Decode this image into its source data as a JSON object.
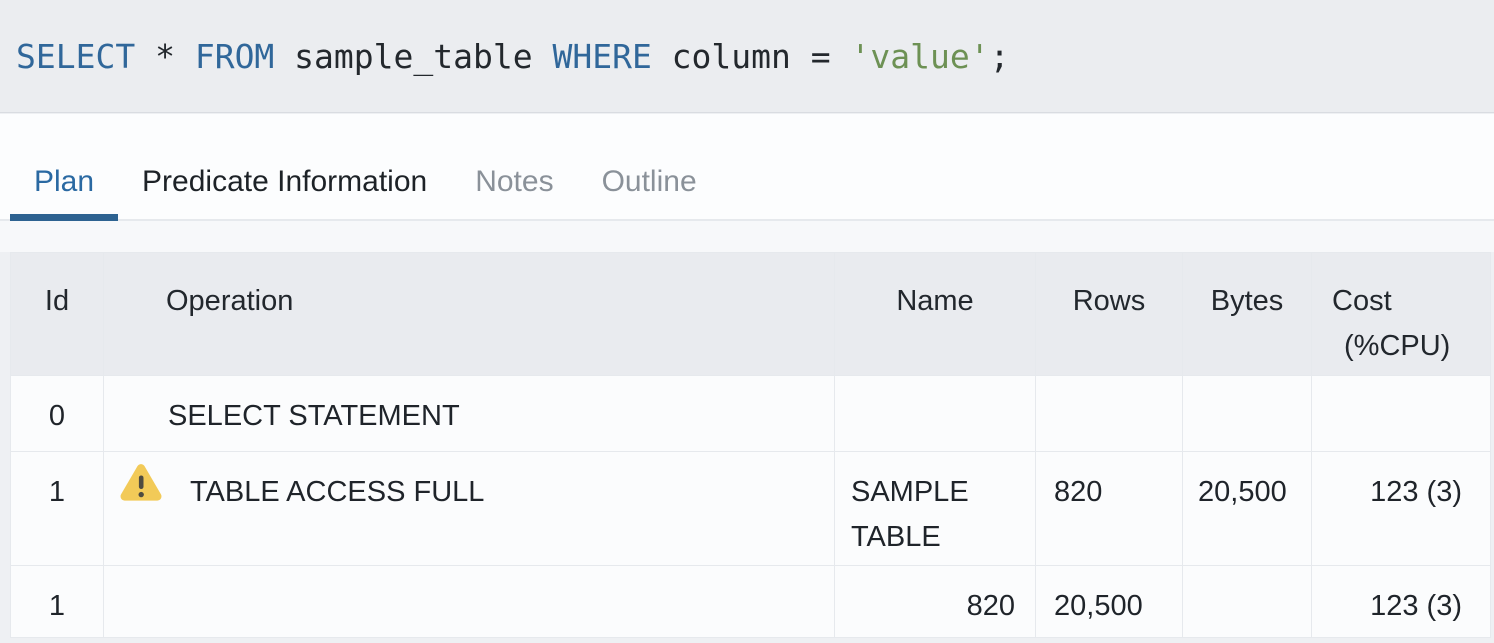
{
  "sql_query": {
    "full_text": "SELECT * FROM sample_table WHERE column = 'value';",
    "tokens": [
      {
        "text": "SELECT",
        "type": "keyword"
      },
      {
        "text": " * ",
        "type": "plain"
      },
      {
        "text": "FROM",
        "type": "keyword"
      },
      {
        "text": " sample_table ",
        "type": "plain"
      },
      {
        "text": "WHERE",
        "type": "keyword"
      },
      {
        "text": " column = ",
        "type": "plain"
      },
      {
        "text": "'value'",
        "type": "string"
      },
      {
        "text": ";",
        "type": "plain"
      }
    ]
  },
  "tabs": {
    "items": [
      {
        "label": "Plan",
        "state": "active"
      },
      {
        "label": "Predicate Information",
        "state": "normal"
      },
      {
        "label": "Notes",
        "state": "muted"
      },
      {
        "label": "Outline",
        "state": "muted"
      }
    ]
  },
  "plan_table": {
    "columns": [
      {
        "key": "id",
        "label": "Id"
      },
      {
        "key": "operation",
        "label": "Operation"
      },
      {
        "key": "name",
        "label": "Name"
      },
      {
        "key": "rows",
        "label": "Rows"
      },
      {
        "key": "bytes",
        "label": "Bytes"
      },
      {
        "key": "cost",
        "label": "Cost (%CPU)",
        "label_line1": "Cost",
        "label_line2": "(%CPU)"
      }
    ],
    "rows": [
      {
        "id": "0",
        "operation": "SELECT STATEMENT",
        "name": "",
        "rows": "",
        "bytes": "",
        "cost": "",
        "warning": false
      },
      {
        "id": "1",
        "operation": "TABLE ACCESS FULL",
        "name": "SAMPLE TABLE",
        "rows": "820",
        "bytes": "20,500",
        "cost": "123 (3)",
        "warning": true
      },
      {
        "id": "1",
        "operation": "",
        "name": "820",
        "rows": "20,500",
        "bytes": "",
        "cost": "123 (3)",
        "warning": false,
        "aligns": {
          "name": "right"
        }
      }
    ]
  },
  "icons": {
    "warning": "warning-triangle-icon"
  },
  "colors": {
    "sql_keyword": "#30679a",
    "sql_plain": "#23282d",
    "sql_string": "#6d9154",
    "tab_active": "#2a69a2",
    "tab_underline": "#2d6291",
    "tab_muted": "#8a9199",
    "warning_fill": "#f2ca58",
    "warning_glyph": "#4e4b40",
    "header_bg": "#e9ebef"
  }
}
